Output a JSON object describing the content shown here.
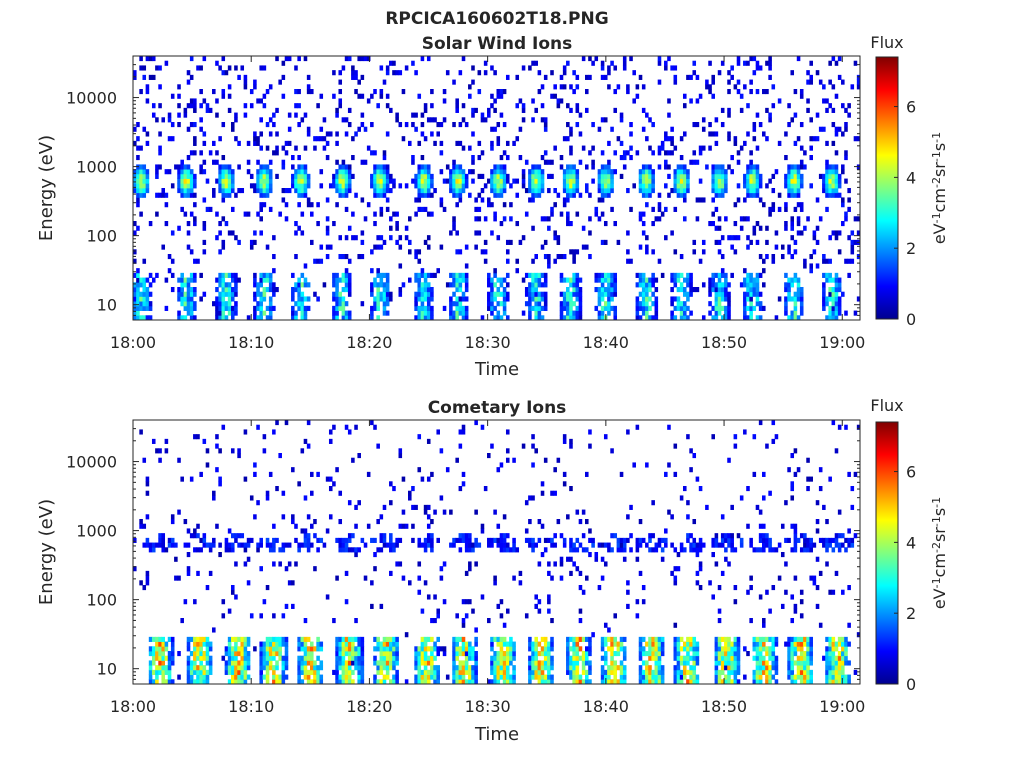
{
  "figure": {
    "title": "RPCICA160602T18.PNG"
  },
  "chart_data": [
    {
      "type": "heatmap",
      "title": "Solar Wind Ions",
      "xlabel": "Time",
      "ylabel": "Energy (eV)",
      "y_scale": "log",
      "ylim": [
        6,
        40000
      ],
      "x_range_minutes": [
        0,
        61.5
      ],
      "x_ticks": [
        "18:00",
        "18:10",
        "18:20",
        "18:30",
        "18:40",
        "18:50",
        "19:00"
      ],
      "y_ticks": [
        "10",
        "100",
        "1000",
        "10000"
      ],
      "colorbar": {
        "title": "Flux",
        "label": "eV-1cm-2sr-1s-1",
        "min": 0,
        "max": 7.4,
        "ticks": [
          "0",
          "2",
          "4",
          "6"
        ],
        "colormap": "jet"
      },
      "features": {
        "pulse_times_minutes": [
          0.7,
          4.5,
          7.9,
          11.1,
          14.2,
          17.7,
          20.9,
          24.6,
          27.5,
          30.9,
          34.1,
          37.0,
          40.0,
          43.4,
          46.4,
          49.6,
          52.4,
          55.9,
          59.1
        ],
        "beam_center_eV": 620,
        "beam_peak_flux": 4.6,
        "low_energy_band_eV": [
          6,
          30
        ],
        "low_energy_peak_flux": 3.8,
        "background_flux": 0.6
      }
    },
    {
      "type": "heatmap",
      "title": "Cometary Ions",
      "xlabel": "Time",
      "ylabel": "Energy (eV)",
      "y_scale": "log",
      "ylim": [
        6,
        40000
      ],
      "x_range_minutes": [
        0,
        61.5
      ],
      "x_ticks": [
        "18:00",
        "18:10",
        "18:20",
        "18:30",
        "18:40",
        "18:50",
        "19:00"
      ],
      "y_ticks": [
        "10",
        "100",
        "1000",
        "10000"
      ],
      "colorbar": {
        "title": "Flux",
        "label": "eV-1cm-2sr-1s-1",
        "min": 0,
        "max": 7.4,
        "ticks": [
          "0",
          "2",
          "4",
          "6"
        ],
        "colormap": "jet"
      },
      "features": {
        "pulse_times_minutes": [
          2.3,
          5.6,
          8.9,
          11.9,
          15.0,
          18.3,
          21.4,
          24.8,
          28.0,
          31.3,
          34.5,
          37.7,
          40.7,
          43.9,
          46.9,
          50.2,
          53.4,
          56.5,
          59.6
        ],
        "low_energy_band_eV": [
          6,
          30
        ],
        "low_energy_peak_flux": 5.8,
        "mid_band_eV": 650,
        "mid_band_flux": 1.0,
        "background_flux": 0.6
      }
    }
  ]
}
